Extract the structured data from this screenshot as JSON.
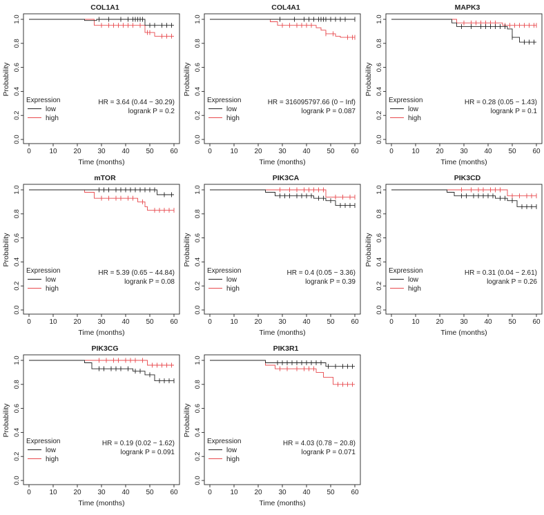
{
  "figure": {
    "xlabel": "Time (months)",
    "ylabel": "Probability",
    "legend_title": "Expression",
    "legend_low": "low",
    "legend_high": "high",
    "colors": {
      "low": "#222222",
      "high": "#e8484c",
      "axis": "#222222"
    }
  },
  "chart_data": [
    {
      "type": "line",
      "title": "COL1A1",
      "xlim": [
        0,
        60
      ],
      "ylim": [
        0,
        1
      ],
      "xticks": [
        "0",
        "10",
        "20",
        "30",
        "40",
        "50",
        "60"
      ],
      "yticks": [
        "0.0",
        "0.2",
        "0.4",
        "0.6",
        "0.8",
        "1.0"
      ],
      "hr_text": "HR = 3.64 (0.44 − 30.29)",
      "p_text": "logrank P = 0.2",
      "series": [
        {
          "name": "low",
          "steps": [
            [
              0,
              1
            ],
            [
              23,
              1
            ],
            [
              23,
              0.99
            ],
            [
              28,
              0.99
            ],
            [
              28,
              1
            ],
            [
              48,
              1
            ],
            [
              48,
              0.95
            ],
            [
              60,
              0.95
            ]
          ],
          "censor": [
            29,
            33,
            38,
            41,
            43,
            44,
            45,
            46,
            47,
            50,
            52,
            55,
            57,
            59
          ]
        },
        {
          "name": "high",
          "steps": [
            [
              0,
              1
            ],
            [
              27,
              1
            ],
            [
              27,
              0.95
            ],
            [
              48,
              0.95
            ],
            [
              48,
              0.89
            ],
            [
              52,
              0.89
            ],
            [
              52,
              0.86
            ],
            [
              60,
              0.86
            ]
          ],
          "censor": [
            30,
            33,
            35,
            37,
            39,
            41,
            43,
            46,
            49,
            50,
            55,
            57,
            59
          ]
        }
      ]
    },
    {
      "type": "line",
      "title": "COL4A1",
      "xlim": [
        0,
        60
      ],
      "ylim": [
        0,
        1
      ],
      "xticks": [
        "0",
        "10",
        "20",
        "30",
        "40",
        "50",
        "60"
      ],
      "yticks": [
        "0.0",
        "0.2",
        "0.4",
        "0.6",
        "0.8",
        "1.0"
      ],
      "hr_text": "HR = 316095797.66 (0 − Inf)",
      "p_text": "logrank P = 0.087",
      "series": [
        {
          "name": "low",
          "steps": [
            [
              0,
              1
            ],
            [
              60,
              1
            ]
          ],
          "censor": [
            29,
            35,
            39,
            41,
            43,
            45,
            46,
            47,
            48,
            50,
            52,
            54,
            56,
            60
          ]
        },
        {
          "name": "high",
          "steps": [
            [
              0,
              1
            ],
            [
              25,
              1
            ],
            [
              25,
              0.98
            ],
            [
              28,
              0.98
            ],
            [
              28,
              0.95
            ],
            [
              44,
              0.95
            ],
            [
              44,
              0.93
            ],
            [
              46,
              0.93
            ],
            [
              46,
              0.91
            ],
            [
              48,
              0.91
            ],
            [
              48,
              0.88
            ],
            [
              52,
              0.88
            ],
            [
              52,
              0.86
            ],
            [
              54,
              0.86
            ],
            [
              54,
              0.85
            ],
            [
              60,
              0.85
            ]
          ],
          "censor": [
            30,
            33,
            36,
            38,
            40,
            42,
            48,
            51,
            57,
            59,
            60
          ]
        }
      ]
    },
    {
      "type": "line",
      "title": "MAPK3",
      "xlim": [
        0,
        60
      ],
      "ylim": [
        0,
        1
      ],
      "xticks": [
        "0",
        "10",
        "20",
        "30",
        "40",
        "50",
        "60"
      ],
      "yticks": [
        "0.0",
        "0.2",
        "0.4",
        "0.6",
        "0.8",
        "1.0"
      ],
      "hr_text": "HR = 0.28 (0.05 − 1.43)",
      "p_text": "logrank P = 0.1",
      "series": [
        {
          "name": "low",
          "steps": [
            [
              0,
              1
            ],
            [
              25,
              1
            ],
            [
              25,
              0.97
            ],
            [
              27,
              0.97
            ],
            [
              27,
              0.94
            ],
            [
              48,
              0.94
            ],
            [
              48,
              0.92
            ],
            [
              50,
              0.92
            ],
            [
              50,
              0.85
            ],
            [
              53,
              0.85
            ],
            [
              53,
              0.81
            ],
            [
              60,
              0.81
            ]
          ],
          "censor": [
            29,
            33,
            37,
            39,
            41,
            43,
            45,
            47,
            50,
            55,
            57,
            59
          ]
        },
        {
          "name": "high",
          "steps": [
            [
              0,
              1
            ],
            [
              27,
              1
            ],
            [
              27,
              0.97
            ],
            [
              46,
              0.97
            ],
            [
              46,
              0.95
            ],
            [
              60,
              0.95
            ]
          ],
          "censor": [
            30,
            33,
            35,
            37,
            39,
            41,
            43,
            47,
            49,
            51,
            53,
            55,
            57,
            59,
            60
          ]
        }
      ]
    },
    {
      "type": "line",
      "title": "mTOR",
      "xlim": [
        0,
        60
      ],
      "ylim": [
        0,
        1
      ],
      "xticks": [
        "0",
        "10",
        "20",
        "30",
        "40",
        "50",
        "60"
      ],
      "yticks": [
        "0.0",
        "0.2",
        "0.4",
        "0.6",
        "0.8",
        "1.0"
      ],
      "hr_text": "HR = 5.39 (0.65 − 44.84)",
      "p_text": "logrank P = 0.08",
      "series": [
        {
          "name": "low",
          "steps": [
            [
              0,
              1
            ],
            [
              53,
              1
            ],
            [
              53,
              0.96
            ],
            [
              60,
              0.96
            ]
          ],
          "censor": [
            29,
            31,
            33,
            36,
            38,
            40,
            42,
            44,
            46,
            48,
            50,
            52,
            56,
            59
          ]
        },
        {
          "name": "high",
          "steps": [
            [
              0,
              1
            ],
            [
              23,
              1
            ],
            [
              23,
              0.98
            ],
            [
              27,
              0.98
            ],
            [
              27,
              0.93
            ],
            [
              45,
              0.93
            ],
            [
              45,
              0.9
            ],
            [
              48,
              0.9
            ],
            [
              48,
              0.86
            ],
            [
              49,
              0.86
            ],
            [
              49,
              0.83
            ],
            [
              60,
              0.83
            ]
          ],
          "censor": [
            30,
            33,
            36,
            38,
            41,
            43,
            47,
            52,
            54,
            56,
            58,
            60
          ]
        }
      ]
    },
    {
      "type": "line",
      "title": "PIK3CA",
      "xlim": [
        0,
        60
      ],
      "ylim": [
        0,
        1
      ],
      "xticks": [
        "0",
        "10",
        "20",
        "30",
        "40",
        "50",
        "60"
      ],
      "yticks": [
        "0.0",
        "0.2",
        "0.4",
        "0.6",
        "0.8",
        "1.0"
      ],
      "hr_text": "HR = 0.4 (0.05 − 3.36)",
      "p_text": "logrank P = 0.39",
      "series": [
        {
          "name": "low",
          "steps": [
            [
              0,
              1
            ],
            [
              23,
              1
            ],
            [
              23,
              0.98
            ],
            [
              27,
              0.98
            ],
            [
              27,
              0.95
            ],
            [
              43,
              0.95
            ],
            [
              43,
              0.93
            ],
            [
              48,
              0.93
            ],
            [
              48,
              0.91
            ],
            [
              52,
              0.91
            ],
            [
              52,
              0.87
            ],
            [
              60,
              0.87
            ]
          ],
          "censor": [
            29,
            31,
            33,
            36,
            38,
            40,
            42,
            45,
            47,
            50,
            54,
            56,
            58,
            60
          ]
        },
        {
          "name": "high",
          "steps": [
            [
              0,
              1
            ],
            [
              48,
              1
            ],
            [
              48,
              0.94
            ],
            [
              60,
              0.94
            ]
          ],
          "censor": [
            29,
            33,
            36,
            39,
            41,
            43,
            45,
            47,
            52,
            55,
            58,
            60
          ]
        }
      ]
    },
    {
      "type": "line",
      "title": "PIK3CD",
      "xlim": [
        0,
        60
      ],
      "ylim": [
        0,
        1
      ],
      "xticks": [
        "0",
        "10",
        "20",
        "30",
        "40",
        "50",
        "60"
      ],
      "yticks": [
        "0.0",
        "0.2",
        "0.4",
        "0.6",
        "0.8",
        "1.0"
      ],
      "hr_text": "HR = 0.31 (0.04 − 2.61)",
      "p_text": "logrank P = 0.26",
      "series": [
        {
          "name": "low",
          "steps": [
            [
              0,
              1
            ],
            [
              23,
              1
            ],
            [
              23,
              0.98
            ],
            [
              26,
              0.98
            ],
            [
              26,
              0.95
            ],
            [
              43,
              0.95
            ],
            [
              43,
              0.93
            ],
            [
              48,
              0.93
            ],
            [
              48,
              0.91
            ],
            [
              52,
              0.91
            ],
            [
              52,
              0.86
            ],
            [
              60,
              0.86
            ]
          ],
          "censor": [
            29,
            31,
            34,
            36,
            38,
            40,
            42,
            45,
            47,
            50,
            54,
            56,
            58,
            60
          ]
        },
        {
          "name": "high",
          "steps": [
            [
              0,
              1
            ],
            [
              48,
              1
            ],
            [
              48,
              0.95
            ],
            [
              60,
              0.95
            ]
          ],
          "censor": [
            29,
            33,
            36,
            38,
            41,
            43,
            45,
            50,
            53,
            56,
            58,
            60
          ]
        }
      ]
    },
    {
      "type": "line",
      "title": "PIK3CG",
      "xlim": [
        0,
        60
      ],
      "ylim": [
        0,
        1
      ],
      "xticks": [
        "0",
        "10",
        "20",
        "30",
        "40",
        "50",
        "60"
      ],
      "yticks": [
        "0.0",
        "0.2",
        "0.4",
        "0.6",
        "0.8",
        "1.0"
      ],
      "hr_text": "HR = 0.19 (0.02 − 1.62)",
      "p_text": "logrank P = 0.091",
      "series": [
        {
          "name": "low",
          "steps": [
            [
              0,
              1
            ],
            [
              23,
              1
            ],
            [
              23,
              0.98
            ],
            [
              26,
              0.98
            ],
            [
              26,
              0.93
            ],
            [
              43,
              0.93
            ],
            [
              43,
              0.91
            ],
            [
              48,
              0.91
            ],
            [
              48,
              0.88
            ],
            [
              52,
              0.88
            ],
            [
              52,
              0.83
            ],
            [
              60,
              0.83
            ]
          ],
          "censor": [
            29,
            31,
            34,
            36,
            38,
            41,
            44,
            46,
            50,
            54,
            56,
            58,
            60
          ]
        },
        {
          "name": "high",
          "steps": [
            [
              0,
              1
            ],
            [
              49,
              1
            ],
            [
              49,
              0.96
            ],
            [
              60,
              0.96
            ]
          ],
          "censor": [
            29,
            32,
            35,
            37,
            40,
            42,
            44,
            47,
            51,
            53,
            55,
            57,
            59
          ]
        }
      ]
    },
    {
      "type": "line",
      "title": "PIK3R1",
      "xlim": [
        0,
        60
      ],
      "ylim": [
        0,
        1
      ],
      "xticks": [
        "0",
        "10",
        "20",
        "30",
        "40",
        "50",
        "60"
      ],
      "yticks": [
        "0.0",
        "0.2",
        "0.4",
        "0.6",
        "0.8",
        "1.0"
      ],
      "hr_text": "HR = 4.03 (0.78 − 20.8)",
      "p_text": "logrank P = 0.071",
      "series": [
        {
          "name": "low",
          "steps": [
            [
              0,
              1
            ],
            [
              23,
              1
            ],
            [
              23,
              0.98
            ],
            [
              48,
              0.98
            ],
            [
              48,
              0.95
            ],
            [
              60,
              0.95
            ]
          ],
          "censor": [
            28,
            30,
            32,
            34,
            36,
            38,
            40,
            42,
            44,
            46,
            49,
            52,
            55,
            57,
            59
          ]
        },
        {
          "name": "high",
          "steps": [
            [
              0,
              1
            ],
            [
              23,
              1
            ],
            [
              23,
              0.96
            ],
            [
              27,
              0.96
            ],
            [
              27,
              0.93
            ],
            [
              44,
              0.93
            ],
            [
              44,
              0.9
            ],
            [
              47,
              0.9
            ],
            [
              47,
              0.86
            ],
            [
              51,
              0.86
            ],
            [
              51,
              0.8
            ],
            [
              60,
              0.8
            ]
          ],
          "censor": [
            29,
            32,
            36,
            39,
            41,
            43,
            53,
            55,
            57,
            59
          ]
        }
      ]
    }
  ]
}
